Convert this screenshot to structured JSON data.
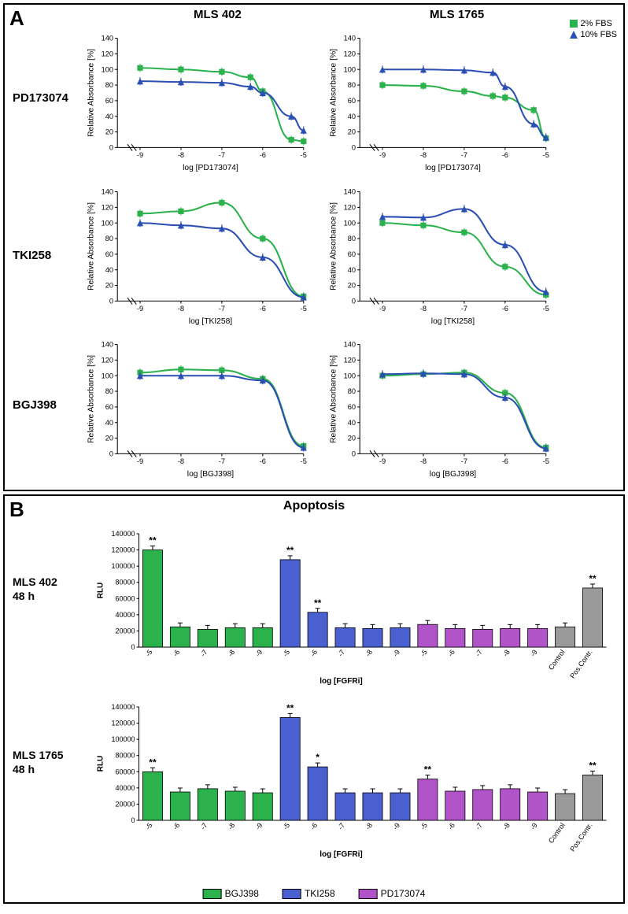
{
  "panelA": {
    "label": "A",
    "columns": [
      "MLS 402",
      "MLS 1765"
    ],
    "rows": [
      "PD173074",
      "TKI258",
      "BGJ398"
    ],
    "legend": [
      {
        "label": "2% FBS",
        "color": "#2bb24c",
        "shape": "square"
      },
      {
        "label": "10% FBS",
        "color": "#2b4fb2",
        "shape": "triangle"
      }
    ],
    "charts": {
      "ylabel": "Relative Absorbance [%]",
      "ylim": [
        0,
        140
      ],
      "yticks": [
        0,
        20,
        40,
        60,
        80,
        100,
        120,
        140
      ],
      "xlim": [
        -9,
        -5
      ],
      "xticks": [
        -9,
        -8,
        -7,
        -6,
        -5
      ],
      "series": [
        {
          "xlabel": "log [PD173074]",
          "green": [
            [
              -9,
              102
            ],
            [
              -8,
              100
            ],
            [
              -7,
              97
            ],
            [
              -6.3,
              90
            ],
            [
              -6,
              72
            ],
            [
              -5.3,
              10
            ],
            [
              -5,
              8
            ]
          ],
          "blue": [
            [
              -9,
              85
            ],
            [
              -8,
              84
            ],
            [
              -7,
              83
            ],
            [
              -6.3,
              78
            ],
            [
              -6,
              70
            ],
            [
              -5.3,
              40
            ],
            [
              -5,
              22
            ]
          ]
        },
        {
          "xlabel": "log [PD173074]",
          "green": [
            [
              -9,
              80
            ],
            [
              -8,
              79
            ],
            [
              -7,
              72
            ],
            [
              -6.3,
              66
            ],
            [
              -6,
              64
            ],
            [
              -5.3,
              48
            ],
            [
              -5,
              12
            ]
          ],
          "blue": [
            [
              -9,
              100
            ],
            [
              -8,
              100
            ],
            [
              -7,
              99
            ],
            [
              -6.3,
              96
            ],
            [
              -6,
              78
            ],
            [
              -5.3,
              30
            ],
            [
              -5,
              13
            ]
          ]
        },
        {
          "xlabel": "log [TKI258]",
          "green": [
            [
              -9,
              112
            ],
            [
              -8,
              115
            ],
            [
              -7,
              126
            ],
            [
              -6,
              80
            ],
            [
              -5,
              6
            ]
          ],
          "blue": [
            [
              -9,
              100
            ],
            [
              -8,
              97
            ],
            [
              -7,
              93
            ],
            [
              -6,
              56
            ],
            [
              -5,
              5
            ]
          ]
        },
        {
          "xlabel": "log [TKI258]",
          "green": [
            [
              -9,
              100
            ],
            [
              -8,
              97
            ],
            [
              -7,
              88
            ],
            [
              -6,
              44
            ],
            [
              -5,
              8
            ]
          ],
          "blue": [
            [
              -9,
              108
            ],
            [
              -8,
              107
            ],
            [
              -7,
              118
            ],
            [
              -6,
              72
            ],
            [
              -5,
              12
            ]
          ]
        },
        {
          "xlabel": "log [BGJ398]",
          "green": [
            [
              -9,
              104
            ],
            [
              -8,
              108
            ],
            [
              -7,
              107
            ],
            [
              -6,
              96
            ],
            [
              -5,
              10
            ]
          ],
          "blue": [
            [
              -9,
              100
            ],
            [
              -8,
              100
            ],
            [
              -7,
              100
            ],
            [
              -6,
              94
            ],
            [
              -5,
              8
            ]
          ]
        },
        {
          "xlabel": "log [BGJ398]",
          "green": [
            [
              -9,
              100
            ],
            [
              -8,
              102
            ],
            [
              -7,
              104
            ],
            [
              -6,
              78
            ],
            [
              -5,
              8
            ]
          ],
          "blue": [
            [
              -9,
              102
            ],
            [
              -8,
              103
            ],
            [
              -7,
              102
            ],
            [
              -6,
              72
            ],
            [
              -5,
              7
            ]
          ]
        }
      ]
    }
  },
  "panelB": {
    "label": "B",
    "title": "Apoptosis",
    "rows": [
      {
        "label": "MLS 402\n48 h",
        "ymax": 140000,
        "ystep": 20000,
        "sig": {
          "0": "**",
          "5": "**",
          "6": "**",
          "16": "**"
        },
        "bars": [
          {
            "c": "#2bb24c",
            "v": 120000
          },
          {
            "c": "#2bb24c",
            "v": 25000
          },
          {
            "c": "#2bb24c",
            "v": 22000
          },
          {
            "c": "#2bb24c",
            "v": 24000
          },
          {
            "c": "#2bb24c",
            "v": 24000
          },
          {
            "c": "#4a5fd0",
            "v": 108000
          },
          {
            "c": "#4a5fd0",
            "v": 43000
          },
          {
            "c": "#4a5fd0",
            "v": 24000
          },
          {
            "c": "#4a5fd0",
            "v": 23000
          },
          {
            "c": "#4a5fd0",
            "v": 24000
          },
          {
            "c": "#b254c9",
            "v": 28000
          },
          {
            "c": "#b254c9",
            "v": 23000
          },
          {
            "c": "#b254c9",
            "v": 22000
          },
          {
            "c": "#b254c9",
            "v": 23000
          },
          {
            "c": "#b254c9",
            "v": 23000
          },
          {
            "c": "#9a9a9a",
            "v": 25000
          },
          {
            "c": "#9a9a9a",
            "v": 73000
          }
        ]
      },
      {
        "label": "MLS 1765\n48 h",
        "ymax": 140000,
        "ystep": 20000,
        "sig": {
          "0": "**",
          "5": "**",
          "6": "*",
          "10": "**",
          "16": "**"
        },
        "bars": [
          {
            "c": "#2bb24c",
            "v": 60000
          },
          {
            "c": "#2bb24c",
            "v": 35000
          },
          {
            "c": "#2bb24c",
            "v": 39000
          },
          {
            "c": "#2bb24c",
            "v": 36000
          },
          {
            "c": "#2bb24c",
            "v": 34000
          },
          {
            "c": "#4a5fd0",
            "v": 127000
          },
          {
            "c": "#4a5fd0",
            "v": 66000
          },
          {
            "c": "#4a5fd0",
            "v": 34000
          },
          {
            "c": "#4a5fd0",
            "v": 34000
          },
          {
            "c": "#4a5fd0",
            "v": 34000
          },
          {
            "c": "#b254c9",
            "v": 51000
          },
          {
            "c": "#b254c9",
            "v": 36000
          },
          {
            "c": "#b254c9",
            "v": 38000
          },
          {
            "c": "#b254c9",
            "v": 39000
          },
          {
            "c": "#b254c9",
            "v": 35000
          },
          {
            "c": "#9a9a9a",
            "v": 33000
          },
          {
            "c": "#9a9a9a",
            "v": 56000
          }
        ]
      }
    ],
    "xlabels": [
      "-5",
      "-6",
      "-7",
      "-8",
      "-9",
      "-5",
      "-6",
      "-7",
      "-8",
      "-9",
      "-5",
      "-6",
      "-7",
      "-8",
      "-9",
      "Control",
      "Pos.Contr."
    ],
    "xaxis": "log [FGFRi]",
    "ylabel": "RLU",
    "legend": [
      {
        "label": "BGJ398",
        "color": "#2bb24c"
      },
      {
        "label": "TKI258",
        "color": "#4a5fd0"
      },
      {
        "label": "PD173074",
        "color": "#b254c9"
      }
    ]
  },
  "colors": {
    "green": "#2bb24c",
    "blue": "#2b4fb2"
  }
}
